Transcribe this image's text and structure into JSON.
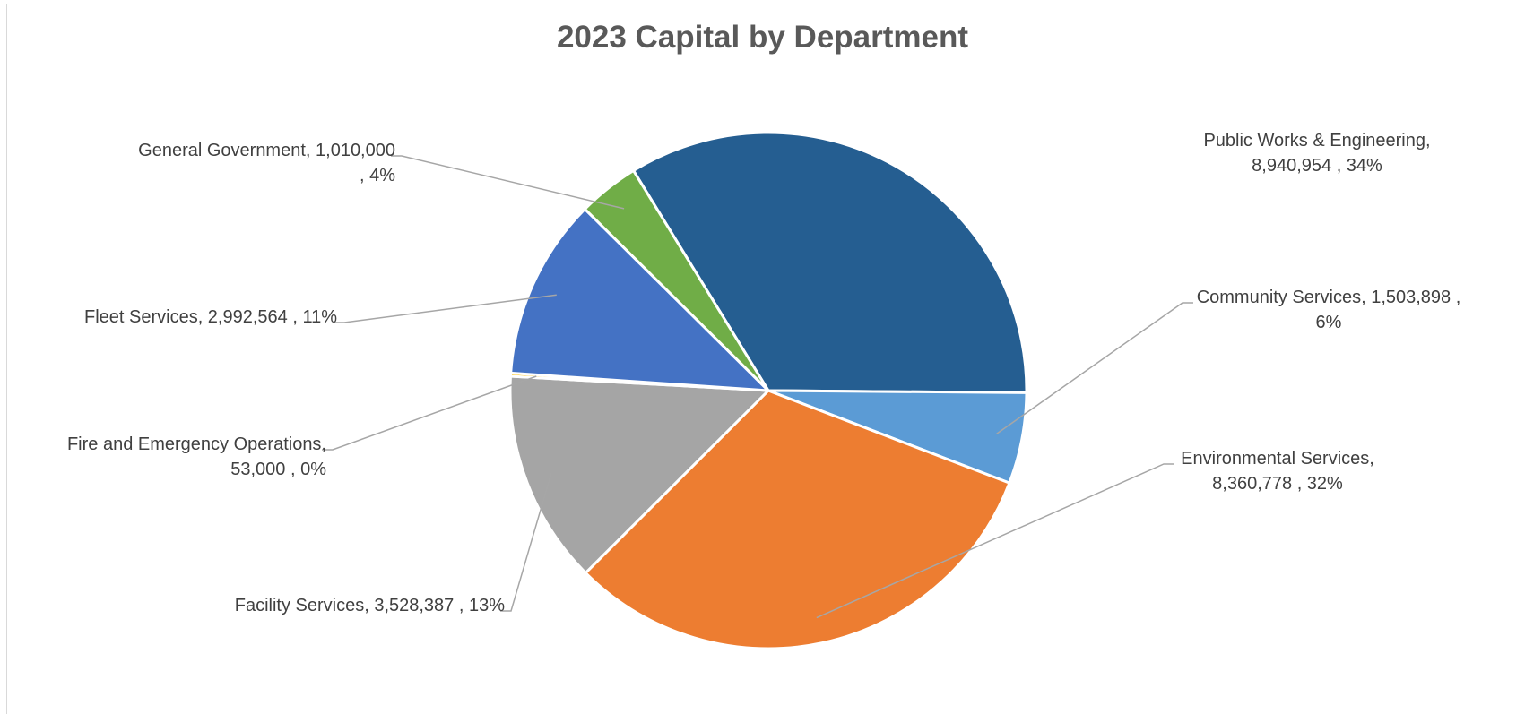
{
  "chart_data": {
    "type": "pie",
    "title": "2023 Capital by Department",
    "slices": [
      {
        "name": "Public Works & Engineering",
        "value": 8940954,
        "percent_label": "34%",
        "color": "#255e91",
        "label_lines": [
          "Public Works & Engineering,",
          "8,940,954 , 34%"
        ]
      },
      {
        "name": "Community Services",
        "value": 1503898,
        "percent_label": "6%",
        "color": "#5b9bd5",
        "label_lines": [
          "Community Services, 1,503,898 ,",
          "6%"
        ]
      },
      {
        "name": "Environmental Services",
        "value": 8360778,
        "percent_label": "32%",
        "color": "#ed7d31",
        "label_lines": [
          "Environmental Services,",
          "8,360,778 , 32%"
        ]
      },
      {
        "name": "Facility Services",
        "value": 3528387,
        "percent_label": "13%",
        "color": "#a5a5a5",
        "label_lines": [
          "Facility Services, 3,528,387 , 13%"
        ]
      },
      {
        "name": "Fire and Emergency Operations",
        "value": 53000,
        "percent_label": "0%",
        "color": "#ffc000",
        "label_lines": [
          "Fire and Emergency Operations,",
          "53,000 , 0%"
        ]
      },
      {
        "name": "Fleet Services",
        "value": 2992564,
        "percent_label": "11%",
        "color": "#4472c4",
        "label_lines": [
          "Fleet Services, 2,992,564 , 11%"
        ]
      },
      {
        "name": "General Government",
        "value": 1010000,
        "percent_label": "4%",
        "color": "#70ad47",
        "label_lines": [
          "General Government, 1,010,000",
          ", 4%"
        ]
      }
    ],
    "legend": "none",
    "label_style": "callouts with leader lines"
  }
}
